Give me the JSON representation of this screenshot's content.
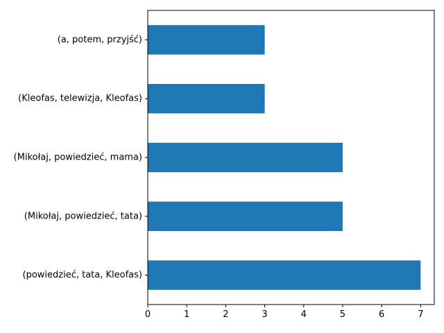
{
  "chart_data": {
    "type": "bar",
    "orientation": "horizontal",
    "categories": [
      "(a, potem, przyjść)",
      "(Kleofas, telewizja, Kleofas)",
      "(Mikołaj, powiedzieć, mama)",
      "(Mikołaj, powiedzieć, tata)",
      "(powiedzieć, tata, Kleofas)"
    ],
    "values": [
      3,
      3,
      5,
      5,
      7
    ],
    "xlim": [
      0,
      7.35
    ],
    "xticks": [
      "0",
      "1",
      "2",
      "3",
      "4",
      "5",
      "6",
      "7"
    ],
    "title": "",
    "xlabel": "",
    "ylabel": "",
    "grid": false,
    "legend": "none",
    "colors": {
      "bar": "#1f77b4",
      "axis": "#000000",
      "background": "#ffffff"
    }
  }
}
